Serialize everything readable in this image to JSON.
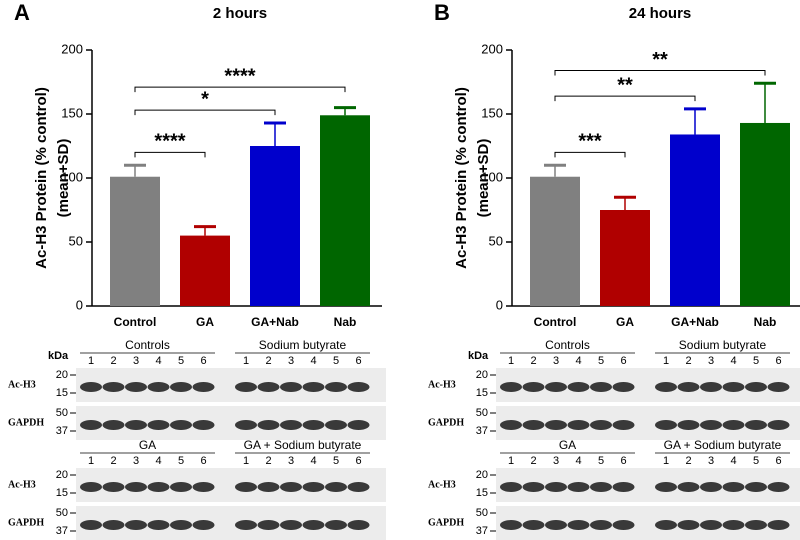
{
  "chart_data": [
    {
      "type": "bar",
      "panel": "A",
      "title": "2 hours",
      "y_label": [
        "Ac-H3  Protein (% control)",
        "(mean+SD)"
      ],
      "categories": [
        "Control",
        "GA",
        "GA+Nab",
        "Nab"
      ],
      "values": [
        101,
        55,
        125,
        149
      ],
      "errors": [
        9,
        7,
        18,
        6
      ],
      "colors": [
        "#808080",
        "#b00000",
        "#0000cc",
        "#006600"
      ],
      "ylim": [
        0,
        200
      ],
      "yticks": [
        0,
        50,
        100,
        150,
        200
      ],
      "comparisons": [
        {
          "from": 0,
          "to": 1,
          "label": "****"
        },
        {
          "from": 0,
          "to": 2,
          "label": "*"
        },
        {
          "from": 0,
          "to": 3,
          "label": "****"
        }
      ]
    },
    {
      "type": "bar",
      "panel": "B",
      "title": "24 hours",
      "y_label": [
        "Ac-H3  Protein (% control)",
        "(mean+SD)"
      ],
      "categories": [
        "Control",
        "GA",
        "GA+Nab",
        "Nab"
      ],
      "values": [
        101,
        75,
        134,
        143
      ],
      "errors": [
        9,
        10,
        20,
        31
      ],
      "colors": [
        "#808080",
        "#b00000",
        "#0000cc",
        "#006600"
      ],
      "ylim": [
        0,
        200
      ],
      "yticks": [
        0,
        50,
        100,
        150,
        200
      ],
      "comparisons": [
        {
          "from": 0,
          "to": 1,
          "label": "***"
        },
        {
          "from": 0,
          "to": 2,
          "label": "**"
        },
        {
          "from": 0,
          "to": 3,
          "label": "**"
        }
      ]
    }
  ],
  "blots": {
    "unit": "kDa",
    "lanes": [
      "1",
      "2",
      "3",
      "4",
      "5",
      "6"
    ],
    "rows": [
      {
        "label": "Ac-H3",
        "markers": [
          "20",
          "15"
        ]
      },
      {
        "label": "GAPDH",
        "markers": [
          "50",
          "37"
        ]
      }
    ],
    "groups": [
      [
        "Controls",
        "Sodium butyrate"
      ],
      [
        "GA",
        "GA + Sodium butyrate"
      ]
    ]
  }
}
